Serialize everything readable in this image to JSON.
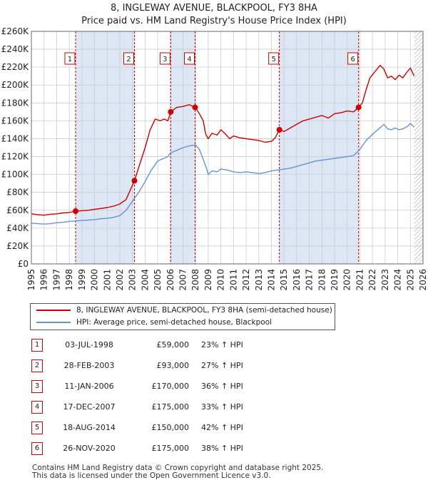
{
  "title_line1": "8, INGLEWAY AVENUE, BLACKPOOL, FY3 8HA",
  "title_line2": "Price paid vs. HM Land Registry's House Price Index (HPI)",
  "colors": {
    "property": "#cc0000",
    "hpi": "#6495cd",
    "shade": "#dce6f5",
    "grid": "#cccccc"
  },
  "chart_data": {
    "type": "line",
    "title": "8, INGLEWAY AVENUE, BLACKPOOL, FY3 8HA",
    "subtitle": "Price paid vs. HM Land Registry's House Price Index (HPI)",
    "xlim": [
      1995,
      2026
    ],
    "ylim": [
      0,
      260000
    ],
    "x_ticks": [
      "1995",
      "1996",
      "1997",
      "1998",
      "1999",
      "2000",
      "2001",
      "2002",
      "2003",
      "2004",
      "2005",
      "2006",
      "2007",
      "2008",
      "2009",
      "2010",
      "2011",
      "2012",
      "2013",
      "2014",
      "2015",
      "2016",
      "2017",
      "2018",
      "2019",
      "2020",
      "2021",
      "2022",
      "2023",
      "2024",
      "2025",
      "2026"
    ],
    "y_ticks": [
      {
        "value": 0,
        "label": "£0"
      },
      {
        "value": 20000,
        "label": "£20K"
      },
      {
        "value": 40000,
        "label": "£40K"
      },
      {
        "value": 60000,
        "label": "£60K"
      },
      {
        "value": 80000,
        "label": "£80K"
      },
      {
        "value": 100000,
        "label": "£100K"
      },
      {
        "value": 120000,
        "label": "£120K"
      },
      {
        "value": 140000,
        "label": "£140K"
      },
      {
        "value": 160000,
        "label": "£160K"
      },
      {
        "value": 180000,
        "label": "£180K"
      },
      {
        "value": 200000,
        "label": "£200K"
      },
      {
        "value": 220000,
        "label": "£220K"
      },
      {
        "value": 240000,
        "label": "£240K"
      },
      {
        "value": 260000,
        "label": "£260K"
      }
    ],
    "series": [
      {
        "name": "8, INGLEWAY AVENUE, BLACKPOOL, FY3 8HA (semi-detached house)",
        "color": "#cc0000",
        "points": [
          [
            1995.0,
            56000
          ],
          [
            1995.5,
            55000
          ],
          [
            1996.0,
            54500
          ],
          [
            1996.5,
            55500
          ],
          [
            1997.0,
            56000
          ],
          [
            1997.5,
            57000
          ],
          [
            1998.0,
            57500
          ],
          [
            1998.5,
            59000
          ],
          [
            1999.0,
            59500
          ],
          [
            1999.5,
            60000
          ],
          [
            2000.0,
            61000
          ],
          [
            2000.5,
            62000
          ],
          [
            2001.0,
            63000
          ],
          [
            2001.5,
            64500
          ],
          [
            2002.0,
            67000
          ],
          [
            2002.5,
            72000
          ],
          [
            2003.16,
            93000
          ],
          [
            2003.5,
            108000
          ],
          [
            2004.0,
            130000
          ],
          [
            2004.4,
            150000
          ],
          [
            2004.8,
            162000
          ],
          [
            2005.2,
            160000
          ],
          [
            2005.5,
            162000
          ],
          [
            2005.8,
            160000
          ],
          [
            2006.03,
            170000
          ],
          [
            2006.5,
            175000
          ],
          [
            2007.0,
            176000
          ],
          [
            2007.5,
            178000
          ],
          [
            2007.96,
            175000
          ],
          [
            2008.3,
            168000
          ],
          [
            2008.6,
            160000
          ],
          [
            2008.8,
            145000
          ],
          [
            2009.0,
            140000
          ],
          [
            2009.3,
            146000
          ],
          [
            2009.7,
            144000
          ],
          [
            2010.0,
            150000
          ],
          [
            2010.3,
            146000
          ],
          [
            2010.7,
            140000
          ],
          [
            2011.0,
            143000
          ],
          [
            2011.5,
            141000
          ],
          [
            2012.0,
            140000
          ],
          [
            2012.5,
            139000
          ],
          [
            2013.0,
            138000
          ],
          [
            2013.5,
            136000
          ],
          [
            2014.0,
            137000
          ],
          [
            2014.3,
            141000
          ],
          [
            2014.63,
            150000
          ],
          [
            2015.0,
            148000
          ],
          [
            2015.5,
            152000
          ],
          [
            2016.0,
            156000
          ],
          [
            2016.5,
            160000
          ],
          [
            2017.0,
            162000
          ],
          [
            2017.5,
            164000
          ],
          [
            2018.0,
            166000
          ],
          [
            2018.5,
            163000
          ],
          [
            2019.0,
            168000
          ],
          [
            2019.5,
            169000
          ],
          [
            2020.0,
            171000
          ],
          [
            2020.5,
            170000
          ],
          [
            2020.9,
            175000
          ],
          [
            2021.2,
            180000
          ],
          [
            2021.5,
            195000
          ],
          [
            2021.8,
            208000
          ],
          [
            2022.2,
            215000
          ],
          [
            2022.6,
            222000
          ],
          [
            2022.9,
            218000
          ],
          [
            2023.2,
            208000
          ],
          [
            2023.5,
            210000
          ],
          [
            2023.8,
            206000
          ],
          [
            2024.1,
            211000
          ],
          [
            2024.4,
            208000
          ],
          [
            2024.7,
            214000
          ],
          [
            2025.0,
            219000
          ],
          [
            2025.3,
            210000
          ]
        ]
      },
      {
        "name": "HPI: Average price, semi-detached house, Blackpool",
        "color": "#6495cd",
        "points": [
          [
            1995.0,
            45500
          ],
          [
            1995.5,
            45000
          ],
          [
            1996.0,
            44500
          ],
          [
            1996.5,
            45000
          ],
          [
            1997.0,
            46000
          ],
          [
            1997.5,
            46500
          ],
          [
            1998.0,
            47500
          ],
          [
            1998.5,
            48000
          ],
          [
            1999.0,
            48500
          ],
          [
            1999.5,
            49000
          ],
          [
            2000.0,
            49500
          ],
          [
            2000.5,
            50500
          ],
          [
            2001.0,
            51000
          ],
          [
            2001.5,
            52000
          ],
          [
            2002.0,
            54000
          ],
          [
            2002.5,
            60000
          ],
          [
            2003.0,
            70000
          ],
          [
            2003.5,
            80000
          ],
          [
            2004.0,
            92000
          ],
          [
            2004.5,
            105000
          ],
          [
            2005.0,
            115000
          ],
          [
            2005.3,
            117000
          ],
          [
            2005.5,
            118000
          ],
          [
            2005.8,
            120000
          ],
          [
            2006.0,
            124000
          ],
          [
            2006.5,
            127000
          ],
          [
            2007.0,
            130000
          ],
          [
            2007.5,
            132000
          ],
          [
            2008.0,
            133000
          ],
          [
            2008.3,
            128000
          ],
          [
            2008.6,
            117000
          ],
          [
            2008.9,
            105000
          ],
          [
            2009.0,
            100000
          ],
          [
            2009.3,
            104000
          ],
          [
            2009.7,
            103000
          ],
          [
            2010.0,
            106000
          ],
          [
            2010.5,
            105000
          ],
          [
            2011.0,
            103000
          ],
          [
            2011.5,
            102000
          ],
          [
            2012.0,
            103000
          ],
          [
            2012.5,
            102000
          ],
          [
            2013.0,
            101000
          ],
          [
            2013.5,
            102000
          ],
          [
            2014.0,
            104000
          ],
          [
            2014.5,
            105000
          ],
          [
            2015.0,
            106000
          ],
          [
            2015.5,
            107000
          ],
          [
            2016.0,
            109000
          ],
          [
            2016.5,
            111000
          ],
          [
            2017.0,
            113000
          ],
          [
            2017.5,
            115000
          ],
          [
            2018.0,
            116000
          ],
          [
            2018.5,
            117000
          ],
          [
            2019.0,
            118000
          ],
          [
            2019.5,
            119000
          ],
          [
            2020.0,
            120000
          ],
          [
            2020.5,
            121000
          ],
          [
            2021.0,
            128000
          ],
          [
            2021.5,
            138000
          ],
          [
            2022.0,
            145000
          ],
          [
            2022.5,
            151000
          ],
          [
            2022.9,
            156000
          ],
          [
            2023.2,
            151000
          ],
          [
            2023.5,
            150000
          ],
          [
            2023.8,
            152000
          ],
          [
            2024.1,
            150000
          ],
          [
            2024.4,
            151000
          ],
          [
            2024.8,
            154000
          ],
          [
            2025.0,
            157000
          ],
          [
            2025.3,
            153000
          ]
        ]
      }
    ],
    "transactions": [
      {
        "marker": "1",
        "x": 1998.5,
        "price": 59000
      },
      {
        "marker": "2",
        "x": 2003.16,
        "price": 93000
      },
      {
        "marker": "3",
        "x": 2006.03,
        "price": 170000
      },
      {
        "marker": "4",
        "x": 2007.96,
        "price": 175000
      },
      {
        "marker": "5",
        "x": 2014.63,
        "price": 150000
      },
      {
        "marker": "6",
        "x": 2020.9,
        "price": 175000
      }
    ],
    "shaded_periods": [
      [
        1998.5,
        2003.16
      ],
      [
        2006.03,
        2007.96
      ],
      [
        2014.63,
        2020.9
      ]
    ],
    "hatch_from": 2025.3
  },
  "legend": {
    "property_label": "8, INGLEWAY AVENUE, BLACKPOOL, FY3 8HA (semi-detached house)",
    "hpi_label": "HPI: Average price, semi-detached house, Blackpool"
  },
  "transactions_table": [
    {
      "n": "1",
      "date": "03-JUL-1998",
      "price": "£59,000",
      "pct": "23% ↑ HPI"
    },
    {
      "n": "2",
      "date": "28-FEB-2003",
      "price": "£93,000",
      "pct": "27% ↑ HPI"
    },
    {
      "n": "3",
      "date": "11-JAN-2006",
      "price": "£170,000",
      "pct": "36% ↑ HPI"
    },
    {
      "n": "4",
      "date": "17-DEC-2007",
      "price": "£175,000",
      "pct": "33% ↑ HPI"
    },
    {
      "n": "5",
      "date": "18-AUG-2014",
      "price": "£150,000",
      "pct": "42% ↑ HPI"
    },
    {
      "n": "6",
      "date": "26-NOV-2020",
      "price": "£175,000",
      "pct": "38% ↑ HPI"
    }
  ],
  "footer": {
    "line1": "Contains HM Land Registry data © Crown copyright and database right 2025.",
    "line2": "This data is licensed under the Open Government Licence v3.0."
  }
}
